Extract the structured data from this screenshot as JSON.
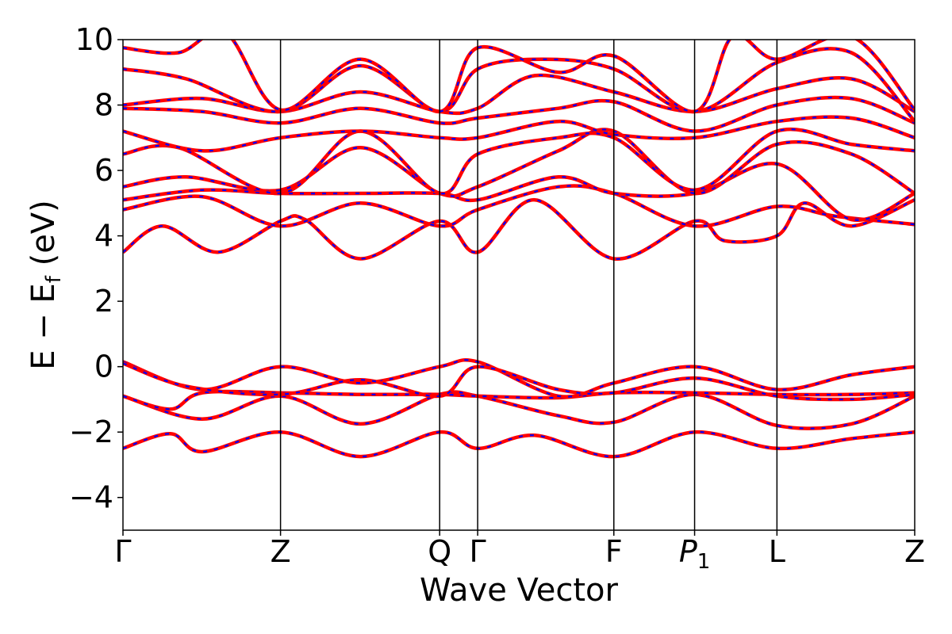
{
  "chart_data": {
    "type": "line",
    "xlabel": "Wave Vector",
    "ylabel": "E − E",
    "ylabel_sub": "f",
    "ylabel_unit": " (eV)",
    "ylim": [
      -5,
      10
    ],
    "yticks": [
      -4,
      -2,
      0,
      2,
      4,
      6,
      8,
      10
    ],
    "ytick_labels": [
      "−4",
      "−2",
      "0",
      "2",
      "4",
      "6",
      "8",
      "10"
    ],
    "xlim": [
      0,
      1
    ],
    "kpoints": [
      {
        "label": "Γ",
        "x": 0.0
      },
      {
        "label": "Z",
        "x": 0.199
      },
      {
        "label": "Q",
        "x": 0.4
      },
      {
        "label": "Γ",
        "x": 0.448
      },
      {
        "label": "F",
        "x": 0.62
      },
      {
        "label": "P",
        "sub": "1",
        "x": 0.722
      },
      {
        "label": "L",
        "x": 0.826
      },
      {
        "label": "Z",
        "x": 1.0
      }
    ],
    "grid": false,
    "series_colors": [
      "#ff0000",
      "#0000ff"
    ],
    "line_style": "red solid with blue dashed overlay",
    "bands": [
      [
        [
          0,
          -2.5
        ],
        [
          0.06,
          -2.05
        ],
        [
          0.1,
          -2.6
        ],
        [
          0.199,
          -2.0
        ],
        [
          0.3,
          -2.75
        ],
        [
          0.4,
          -2.0
        ],
        [
          0.448,
          -2.5
        ],
        [
          0.52,
          -2.1
        ],
        [
          0.62,
          -2.75
        ],
        [
          0.722,
          -2.0
        ],
        [
          0.826,
          -2.5
        ],
        [
          0.92,
          -2.2
        ],
        [
          1.0,
          -2.0
        ]
      ],
      [
        [
          0,
          -0.9
        ],
        [
          0.1,
          -1.6
        ],
        [
          0.199,
          -0.9
        ],
        [
          0.3,
          -1.75
        ],
        [
          0.4,
          -0.85
        ],
        [
          0.448,
          -0.9
        ],
        [
          0.55,
          -1.5
        ],
        [
          0.62,
          -1.7
        ],
        [
          0.722,
          -0.85
        ],
        [
          0.826,
          -1.8
        ],
        [
          0.92,
          -1.75
        ],
        [
          1.0,
          -0.9
        ]
      ],
      [
        [
          0,
          -0.9
        ],
        [
          0.06,
          -1.3
        ],
        [
          0.1,
          -0.8
        ],
        [
          0.199,
          -0.8
        ],
        [
          0.3,
          -0.85
        ],
        [
          0.4,
          -0.85
        ],
        [
          0.448,
          -0.9
        ],
        [
          0.55,
          -0.95
        ],
        [
          0.62,
          -0.8
        ],
        [
          0.722,
          -0.8
        ],
        [
          0.826,
          -0.85
        ],
        [
          0.92,
          -0.85
        ],
        [
          1.0,
          -0.8
        ]
      ],
      [
        [
          0,
          0.15
        ],
        [
          0.1,
          -0.7
        ],
        [
          0.199,
          0.0
        ],
        [
          0.3,
          -0.5
        ],
        [
          0.4,
          0.0
        ],
        [
          0.448,
          0.15
        ],
        [
          0.55,
          -0.9
        ],
        [
          0.62,
          -0.5
        ],
        [
          0.722,
          0.0
        ],
        [
          0.826,
          -0.7
        ],
        [
          0.92,
          -0.25
        ],
        [
          1.0,
          0.0
        ]
      ],
      [
        [
          0,
          0.1
        ],
        [
          0.08,
          -0.6
        ],
        [
          0.199,
          -0.85
        ],
        [
          0.3,
          -0.4
        ],
        [
          0.4,
          -0.9
        ],
        [
          0.448,
          0.0
        ],
        [
          0.55,
          -0.7
        ],
        [
          0.62,
          -0.8
        ],
        [
          0.722,
          -0.35
        ],
        [
          0.826,
          -0.9
        ],
        [
          0.92,
          -1.0
        ],
        [
          1.0,
          -0.85
        ]
      ],
      [
        [
          0,
          3.5
        ],
        [
          0.05,
          4.3
        ],
        [
          0.12,
          3.5
        ],
        [
          0.199,
          4.45
        ],
        [
          0.23,
          4.5
        ],
        [
          0.3,
          3.3
        ],
        [
          0.4,
          4.45
        ],
        [
          0.448,
          3.5
        ],
        [
          0.52,
          5.1
        ],
        [
          0.62,
          3.3
        ],
        [
          0.722,
          4.45
        ],
        [
          0.76,
          3.85
        ],
        [
          0.826,
          4.0
        ],
        [
          0.86,
          5.0
        ],
        [
          0.92,
          4.3
        ],
        [
          1.0,
          5.1
        ]
      ],
      [
        [
          0,
          4.8
        ],
        [
          0.1,
          5.2
        ],
        [
          0.199,
          4.3
        ],
        [
          0.3,
          5.0
        ],
        [
          0.4,
          4.3
        ],
        [
          0.448,
          4.8
        ],
        [
          0.55,
          5.5
        ],
        [
          0.62,
          5.3
        ],
        [
          0.722,
          4.3
        ],
        [
          0.826,
          4.9
        ],
        [
          0.9,
          4.6
        ],
        [
          1.0,
          4.35
        ]
      ],
      [
        [
          0,
          5.1
        ],
        [
          0.1,
          5.4
        ],
        [
          0.199,
          5.3
        ],
        [
          0.3,
          5.3
        ],
        [
          0.4,
          5.3
        ],
        [
          0.448,
          5.1
        ],
        [
          0.55,
          5.8
        ],
        [
          0.62,
          5.3
        ],
        [
          0.722,
          5.3
        ],
        [
          0.826,
          6.2
        ],
        [
          0.92,
          4.5
        ],
        [
          1.0,
          5.3
        ]
      ],
      [
        [
          0,
          5.5
        ],
        [
          0.08,
          5.8
        ],
        [
          0.199,
          5.4
        ],
        [
          0.3,
          6.7
        ],
        [
          0.4,
          5.3
        ],
        [
          0.448,
          5.5
        ],
        [
          0.55,
          6.6
        ],
        [
          0.62,
          7.2
        ],
        [
          0.722,
          5.3
        ],
        [
          0.826,
          6.8
        ],
        [
          0.92,
          6.5
        ],
        [
          1.0,
          5.3
        ]
      ],
      [
        [
          0,
          6.5
        ],
        [
          0.07,
          6.7
        ],
        [
          0.199,
          5.3
        ],
        [
          0.3,
          7.2
        ],
        [
          0.4,
          5.3
        ],
        [
          0.448,
          6.5
        ],
        [
          0.55,
          7.0
        ],
        [
          0.62,
          7.0
        ],
        [
          0.722,
          5.4
        ],
        [
          0.826,
          7.2
        ],
        [
          0.92,
          6.8
        ],
        [
          1.0,
          6.6
        ]
      ],
      [
        [
          0,
          7.2
        ],
        [
          0.1,
          6.6
        ],
        [
          0.199,
          7.0
        ],
        [
          0.3,
          7.2
        ],
        [
          0.4,
          7.0
        ],
        [
          0.448,
          7.0
        ],
        [
          0.55,
          7.5
        ],
        [
          0.62,
          7.1
        ],
        [
          0.722,
          7.0
        ],
        [
          0.826,
          7.5
        ],
        [
          0.92,
          7.6
        ],
        [
          1.0,
          7.0
        ]
      ],
      [
        [
          0,
          7.9
        ],
        [
          0.1,
          7.8
        ],
        [
          0.199,
          7.45
        ],
        [
          0.3,
          7.9
        ],
        [
          0.4,
          7.45
        ],
        [
          0.448,
          7.6
        ],
        [
          0.55,
          7.9
        ],
        [
          0.62,
          8.1
        ],
        [
          0.722,
          7.2
        ],
        [
          0.826,
          8.0
        ],
        [
          0.92,
          8.2
        ],
        [
          1.0,
          7.45
        ]
      ],
      [
        [
          0,
          8.0
        ],
        [
          0.1,
          8.2
        ],
        [
          0.199,
          7.8
        ],
        [
          0.3,
          8.4
        ],
        [
          0.4,
          7.8
        ],
        [
          0.448,
          7.9
        ],
        [
          0.52,
          8.9
        ],
        [
          0.62,
          8.4
        ],
        [
          0.722,
          7.8
        ],
        [
          0.826,
          8.5
        ],
        [
          0.92,
          8.8
        ],
        [
          1.0,
          7.8
        ]
      ],
      [
        [
          0,
          9.1
        ],
        [
          0.08,
          8.8
        ],
        [
          0.199,
          7.8
        ],
        [
          0.3,
          9.2
        ],
        [
          0.4,
          7.8
        ],
        [
          0.448,
          9.1
        ],
        [
          0.53,
          9.4
        ],
        [
          0.62,
          9.1
        ],
        [
          0.722,
          7.8
        ],
        [
          0.826,
          9.3
        ],
        [
          0.92,
          9.6
        ],
        [
          1.0,
          7.5
        ]
      ],
      [
        [
          0,
          9.75
        ],
        [
          0.07,
          9.6
        ],
        [
          0.13,
          10.2
        ],
        [
          0.199,
          7.85
        ],
        [
          0.3,
          9.4
        ],
        [
          0.4,
          7.8
        ],
        [
          0.448,
          9.75
        ],
        [
          0.55,
          9.0
        ],
        [
          0.62,
          9.5
        ],
        [
          0.722,
          7.8
        ],
        [
          0.77,
          10.1
        ],
        [
          0.826,
          9.4
        ],
        [
          0.92,
          10.1
        ],
        [
          1.0,
          7.85
        ]
      ]
    ]
  }
}
